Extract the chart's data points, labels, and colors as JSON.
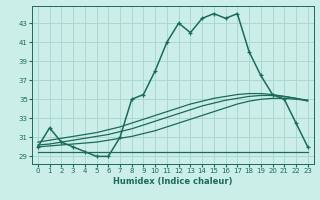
{
  "xlabel": "Humidex (Indice chaleur)",
  "background_color": "#cceee8",
  "grid_color": "#aad8d0",
  "line_color": "#1a6b5a",
  "x_ticks": [
    0,
    1,
    2,
    3,
    4,
    5,
    6,
    7,
    8,
    9,
    10,
    11,
    12,
    13,
    14,
    15,
    16,
    17,
    18,
    19,
    20,
    21,
    22,
    23
  ],
  "y_ticks": [
    29,
    31,
    33,
    35,
    37,
    39,
    41,
    43
  ],
  "ylim": [
    28.2,
    44.8
  ],
  "xlim": [
    -0.5,
    23.5
  ],
  "humidex": [
    30.0,
    32.0,
    30.5,
    30.0,
    29.5,
    29.0,
    29.0,
    31.0,
    35.0,
    35.5,
    38.0,
    41.0,
    43.0,
    42.0,
    43.5,
    44.0,
    43.5,
    44.0,
    40.0,
    37.5,
    35.5,
    35.0,
    32.5,
    30.0
  ],
  "min_line": [
    29.5,
    29.5,
    29.5,
    29.5,
    29.5,
    29.5,
    29.5,
    29.5,
    29.5,
    29.5,
    29.5,
    29.5,
    29.5,
    29.5,
    29.5,
    29.5,
    29.5,
    29.5,
    29.5,
    29.5,
    29.5,
    29.5,
    29.5,
    29.5
  ],
  "mean_line1": [
    30.0,
    30.1,
    30.2,
    30.3,
    30.4,
    30.5,
    30.7,
    30.9,
    31.1,
    31.4,
    31.7,
    32.1,
    32.5,
    32.9,
    33.3,
    33.7,
    34.1,
    34.5,
    34.8,
    35.0,
    35.1,
    35.1,
    35.0,
    34.9
  ],
  "mean_line2": [
    30.2,
    30.3,
    30.5,
    30.7,
    30.9,
    31.1,
    31.3,
    31.6,
    31.9,
    32.3,
    32.7,
    33.1,
    33.5,
    33.9,
    34.3,
    34.6,
    34.9,
    35.1,
    35.3,
    35.4,
    35.4,
    35.3,
    35.1,
    34.9
  ],
  "mean_line3": [
    30.5,
    30.7,
    30.9,
    31.1,
    31.3,
    31.5,
    31.8,
    32.1,
    32.5,
    32.9,
    33.3,
    33.7,
    34.1,
    34.5,
    34.8,
    35.1,
    35.3,
    35.5,
    35.6,
    35.6,
    35.5,
    35.3,
    35.1,
    34.8
  ]
}
